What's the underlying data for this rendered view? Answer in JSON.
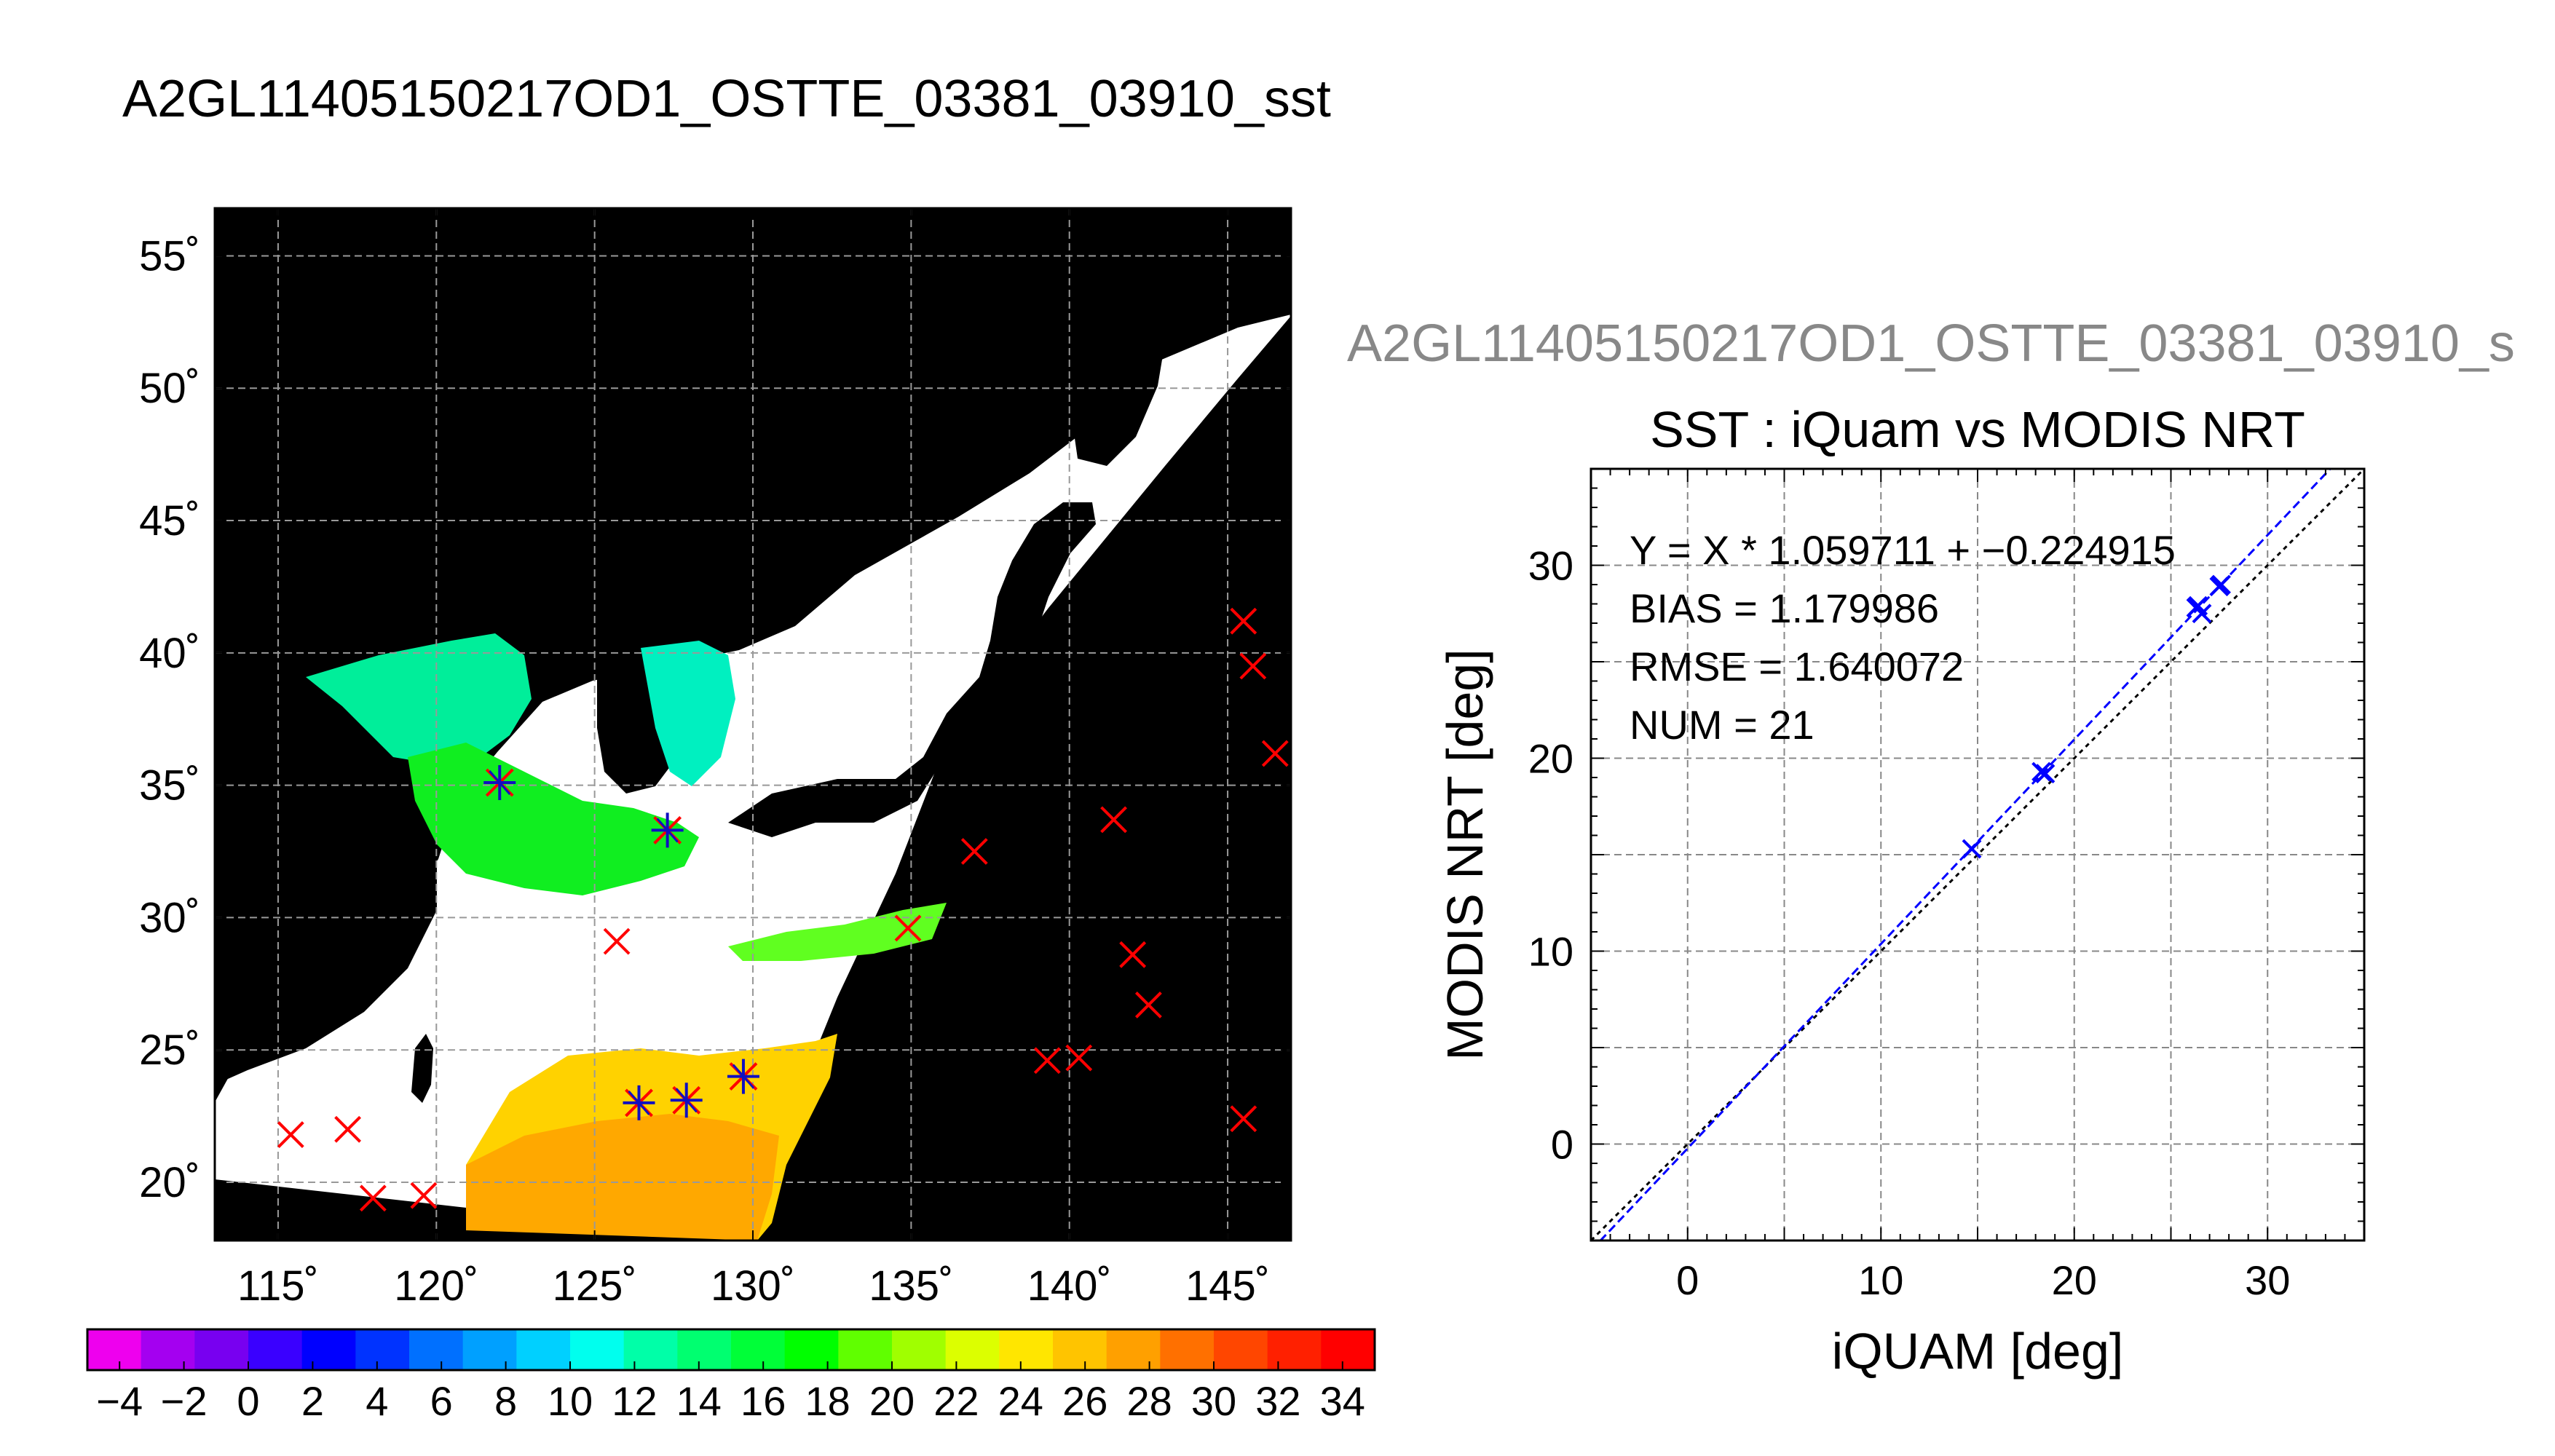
{
  "page_title": "A2GL11405150217OD1_OSTTE_03381_03910_sst",
  "colors": {
    "ocean_unobserved": "#ffffff",
    "land": "#000000",
    "grid": "#999999",
    "unmatched_marker": "#ff0000",
    "matched_marker_primary": "#ff0000",
    "matched_marker_secondary": "#1010c0",
    "scatter_marker": "#0000ff",
    "fit_line": "#0000ff",
    "one_to_one_line": "#000000",
    "side_title": "#888888"
  },
  "chart_data": [
    {
      "type": "map",
      "name": "sst-map",
      "projection": "lon-lat",
      "xlim": [
        113,
        147
      ],
      "ylim": [
        17.8,
        56.8
      ],
      "xticks": [
        115,
        120,
        125,
        130,
        135,
        140,
        145
      ],
      "yticks": [
        20,
        25,
        30,
        35,
        40,
        45,
        50,
        55
      ],
      "xtick_labels": [
        "115˚",
        "120˚",
        "125˚",
        "130˚",
        "135˚",
        "140˚",
        "145˚"
      ],
      "ytick_labels": [
        "20˚",
        "25˚",
        "30˚",
        "35˚",
        "40˚",
        "45˚",
        "50˚",
        "55˚"
      ],
      "grid": true,
      "background": "black",
      "matched_buoys": [
        {
          "lon": 122.0,
          "lat": 35.1
        },
        {
          "lon": 127.3,
          "lat": 33.3
        },
        {
          "lon": 126.4,
          "lat": 23.0
        },
        {
          "lon": 127.9,
          "lat": 23.1
        },
        {
          "lon": 129.7,
          "lat": 24.0
        }
      ],
      "unmatched_buoys": [
        {
          "lon": 115.4,
          "lat": 21.8
        },
        {
          "lon": 117.2,
          "lat": 22.0
        },
        {
          "lon": 118.0,
          "lat": 19.4
        },
        {
          "lon": 119.6,
          "lat": 19.5
        },
        {
          "lon": 125.7,
          "lat": 29.1
        },
        {
          "lon": 134.9,
          "lat": 29.6
        },
        {
          "lon": 137.0,
          "lat": 32.5
        },
        {
          "lon": 139.3,
          "lat": 24.6
        },
        {
          "lon": 140.3,
          "lat": 24.7
        },
        {
          "lon": 141.4,
          "lat": 33.7
        },
        {
          "lon": 142.0,
          "lat": 28.6
        },
        {
          "lon": 142.5,
          "lat": 26.7
        },
        {
          "lon": 145.5,
          "lat": 22.4
        },
        {
          "lon": 145.5,
          "lat": 41.2
        },
        {
          "lon": 145.8,
          "lat": 39.5
        },
        {
          "lon": 146.5,
          "lat": 36.2
        }
      ]
    },
    {
      "type": "colorbar",
      "name": "sst-colorbar",
      "range": [
        -5,
        35
      ],
      "tick_values": [
        -4,
        -2,
        0,
        2,
        4,
        6,
        8,
        10,
        12,
        14,
        16,
        18,
        20,
        22,
        24,
        26,
        28,
        30,
        32,
        34
      ],
      "tick_labels": [
        "−4",
        "−2",
        "0",
        "2",
        "4",
        "6",
        "8",
        "10",
        "12",
        "14",
        "16",
        "18",
        "20",
        "22",
        "24",
        "26",
        "28",
        "30",
        "32",
        "34"
      ],
      "colors": [
        "#ee00ee",
        "#a400f0",
        "#7800f0",
        "#3a00ff",
        "#0000ff",
        "#0033ff",
        "#0070ff",
        "#00a0ff",
        "#00d0ff",
        "#00ffee",
        "#00ffa8",
        "#00ff70",
        "#00ff38",
        "#00ff00",
        "#60ff00",
        "#a0ff00",
        "#dcff00",
        "#ffe600",
        "#ffc400",
        "#ffa000",
        "#ff7000",
        "#ff4600",
        "#ff2000",
        "#ff0000"
      ]
    },
    {
      "type": "scatter",
      "name": "sst-scatter",
      "side_title": "A2GL11405150217OD1_OSTTE_03381_03910_s",
      "title": "SST : iQuam vs MODIS NRT",
      "xlabel": "iQUAM [deg]",
      "ylabel": "MODIS NRT [deg]",
      "xlim": [
        -5,
        35
      ],
      "ylim": [
        -5,
        35
      ],
      "xticks": [
        0,
        10,
        20,
        30
      ],
      "yticks": [
        0,
        10,
        20,
        30
      ],
      "xtick_labels": [
        "0",
        "10",
        "20",
        "30"
      ],
      "ytick_labels": [
        "0",
        "10",
        "20",
        "30"
      ],
      "grid": true,
      "stats": [
        "Y = X * 1.059711 + −0.224915",
        "BIAS = 1.179986",
        "RMSE = 1.640072",
        "NUM = 21"
      ],
      "fit": {
        "slope": 1.059711,
        "intercept": -0.224915
      },
      "points": [
        {
          "x": 14.7,
          "y": 15.3
        },
        {
          "x": 18.3,
          "y": 19.3
        },
        {
          "x": 18.5,
          "y": 19.2
        },
        {
          "x": 26.3,
          "y": 27.8
        },
        {
          "x": 26.6,
          "y": 27.5
        },
        {
          "x": 26.4,
          "y": 27.9
        },
        {
          "x": 27.6,
          "y": 29.0
        },
        {
          "x": 27.5,
          "y": 28.9
        }
      ]
    }
  ]
}
